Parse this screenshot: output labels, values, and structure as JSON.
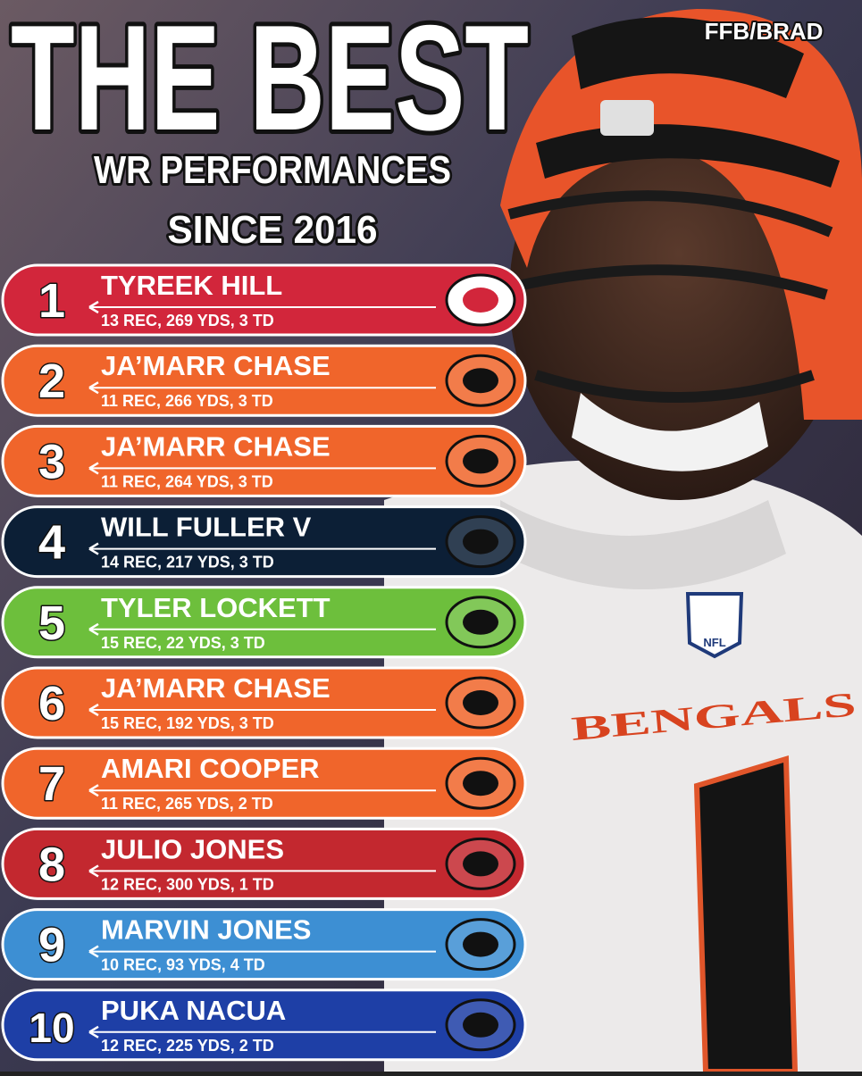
{
  "header": {
    "title": "THE BEST",
    "subtitle_lines": [
      "WR PERFORMANCES",
      "SINCE 2016"
    ],
    "watermark": "FFB/BRAD"
  },
  "jersey": {
    "wordmark": "BENGALS",
    "number": "1",
    "badge": "NFL"
  },
  "rows": [
    {
      "rank": 1,
      "name": "TYREEK HILL",
      "stats": "13 REC, 269 YDS, 3 TD",
      "color": "#d2263b"
    },
    {
      "rank": 2,
      "name": "JA’MARR CHASE",
      "stats": "11 REC, 266 YDS, 3 TD",
      "color": "#f0652b"
    },
    {
      "rank": 3,
      "name": "JA’MARR CHASE",
      "stats": "11 REC, 264 YDS, 3 TD",
      "color": "#f0652b"
    },
    {
      "rank": 4,
      "name": "WILL FULLER V",
      "stats": "14 REC, 217 YDS, 3 TD",
      "color": "#0c1f36"
    },
    {
      "rank": 5,
      "name": "TYLER LOCKETT",
      "stats": "15 REC, 22 YDS, 3 TD",
      "color": "#6dbf3c"
    },
    {
      "rank": 6,
      "name": "JA’MARR CHASE",
      "stats": "15 REC, 192 YDS, 3 TD",
      "color": "#f0652b"
    },
    {
      "rank": 7,
      "name": "AMARI COOPER",
      "stats": "11 REC, 265 YDS, 2 TD",
      "color": "#f0652b"
    },
    {
      "rank": 8,
      "name": "JULIO JONES",
      "stats": "12 REC, 300 YDS, 1 TD",
      "color": "#c3282f"
    },
    {
      "rank": 9,
      "name": "MARVIN JONES",
      "stats": "10 REC, 93 YDS, 4 TD",
      "color": "#3d8fd3"
    },
    {
      "rank": 10,
      "name": "PUKA NACUA",
      "stats": "12 REC, 225 YDS, 2 TD",
      "color": "#1e3fa6"
    }
  ]
}
